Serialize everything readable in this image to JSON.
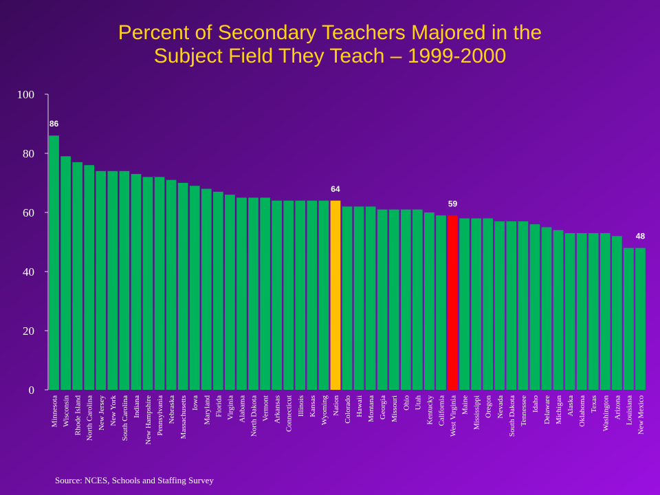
{
  "chart_data": {
    "type": "bar",
    "title": [
      "Percent of Secondary Teachers Majored in the",
      "Subject Field They Teach – 1999-2000"
    ],
    "categories": [
      "Minnesota",
      "Wisconsin",
      "Rhode Island",
      "North Carolina",
      "New Jersey",
      "New York",
      "South Carolina",
      "Indiana",
      "New Hampshire",
      "Pennsylvania",
      "Nebraska",
      "Massachusetts",
      "Iowa",
      "Maryland",
      "Florida",
      "Virginia",
      "Alabama",
      "North Dakota",
      "Vermont",
      "Arkansas",
      "Connecticut",
      "Illinois",
      "Kansas",
      "Wyoming",
      "Nation",
      "Colorado",
      "Hawaii",
      "Montana",
      "Georgia",
      "Missouri",
      "Ohio",
      "Utah",
      "Kentucky",
      "California",
      "West Virginia",
      "Maine",
      "Mississippi",
      "Oregon",
      "Nevada",
      "South Dakota",
      "Tennessee",
      "Idaho",
      "Delaware",
      "Michigan",
      "Alaska",
      "Oklahoma",
      "Texas",
      "Washington",
      "Arizona",
      "Louisiana",
      "New Mexico"
    ],
    "values": [
      86,
      79,
      77,
      76,
      74,
      74,
      74,
      73,
      72,
      72,
      71,
      70,
      69,
      68,
      67,
      66,
      65,
      65,
      65,
      64,
      64,
      64,
      64,
      64,
      64,
      62,
      62,
      62,
      61,
      61,
      61,
      61,
      60,
      59,
      59,
      58,
      58,
      58,
      57,
      57,
      57,
      56,
      55,
      54,
      53,
      53,
      53,
      53,
      52,
      48,
      48
    ],
    "value_labels": [
      "86",
      null,
      null,
      null,
      null,
      null,
      null,
      null,
      null,
      null,
      null,
      null,
      null,
      null,
      null,
      null,
      null,
      null,
      null,
      null,
      null,
      null,
      null,
      null,
      "64",
      null,
      null,
      null,
      null,
      null,
      null,
      null,
      null,
      null,
      "59",
      null,
      null,
      null,
      null,
      null,
      null,
      null,
      null,
      null,
      null,
      null,
      null,
      null,
      null,
      null,
      "48"
    ],
    "color": "#00b35a",
    "highlight_colors": {
      "Nation": "#ffc000",
      "West Virginia": "#ff0000"
    },
    "ylim": [
      0,
      100
    ],
    "yticks": [
      0,
      20,
      40,
      60,
      80,
      100
    ],
    "grid": false,
    "source": "Source: NCES, Schools and Staffing Survey"
  }
}
